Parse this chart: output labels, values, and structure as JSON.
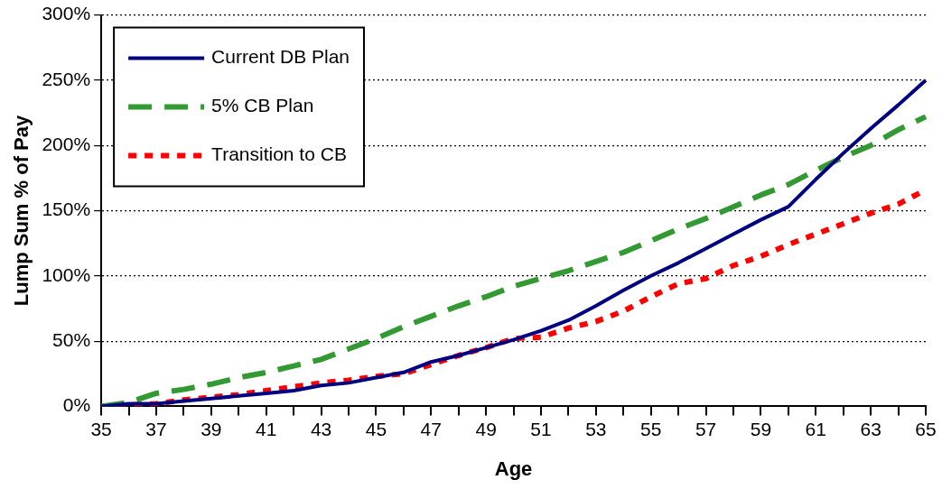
{
  "chart_data": {
    "type": "line",
    "xlabel": "Age",
    "ylabel": "Lump Sum % of Pay",
    "categories": [
      "35",
      null,
      "37",
      null,
      "39",
      null,
      "41",
      null,
      "43",
      null,
      "45",
      null,
      "47",
      null,
      "49",
      null,
      "51",
      null,
      "53",
      null,
      "55",
      null,
      "57",
      null,
      "59",
      null,
      "61",
      null,
      "63",
      null,
      "65"
    ],
    "series": [
      {
        "name": "Current DB Plan",
        "color": "#000080",
        "line_style": "solid",
        "values": [
          0,
          2,
          2,
          4,
          6,
          8,
          10,
          12,
          16,
          18,
          22,
          26,
          34,
          39,
          45,
          51,
          58,
          66,
          77,
          89,
          100,
          110,
          121,
          132,
          143,
          153,
          174,
          194,
          213,
          231,
          250
        ]
      },
      {
        "name": "5% CB Plan",
        "color": "#339933",
        "line_style": "dashed",
        "values": [
          0,
          3,
          10,
          13,
          17,
          22,
          26,
          31,
          36,
          44,
          52,
          61,
          69,
          77,
          84,
          92,
          98,
          104,
          111,
          118,
          127,
          136,
          144,
          153,
          162,
          170,
          181,
          191,
          200,
          212,
          222
        ]
      },
      {
        "name": "Transition to CB",
        "color": "#ff0000",
        "line_style": "dotted",
        "values": [
          0,
          1,
          2,
          5,
          7,
          9,
          12,
          15,
          18,
          20,
          23,
          25,
          32,
          39,
          45,
          52,
          53,
          60,
          65,
          73,
          84,
          94,
          98,
          108,
          115,
          124,
          132,
          140,
          148,
          155,
          166
        ]
      }
    ],
    "ylim": [
      0,
      300
    ],
    "yticks": [
      {
        "value": 0,
        "label": "0%"
      },
      {
        "value": 50,
        "label": "50%"
      },
      {
        "value": 100,
        "label": "100%"
      },
      {
        "value": 150,
        "label": "150%"
      },
      {
        "value": 200,
        "label": "200%"
      },
      {
        "value": 250,
        "label": "250%"
      },
      {
        "value": 300,
        "label": "300%"
      }
    ],
    "grid": "y",
    "legend": "top left",
    "marker": "none"
  }
}
